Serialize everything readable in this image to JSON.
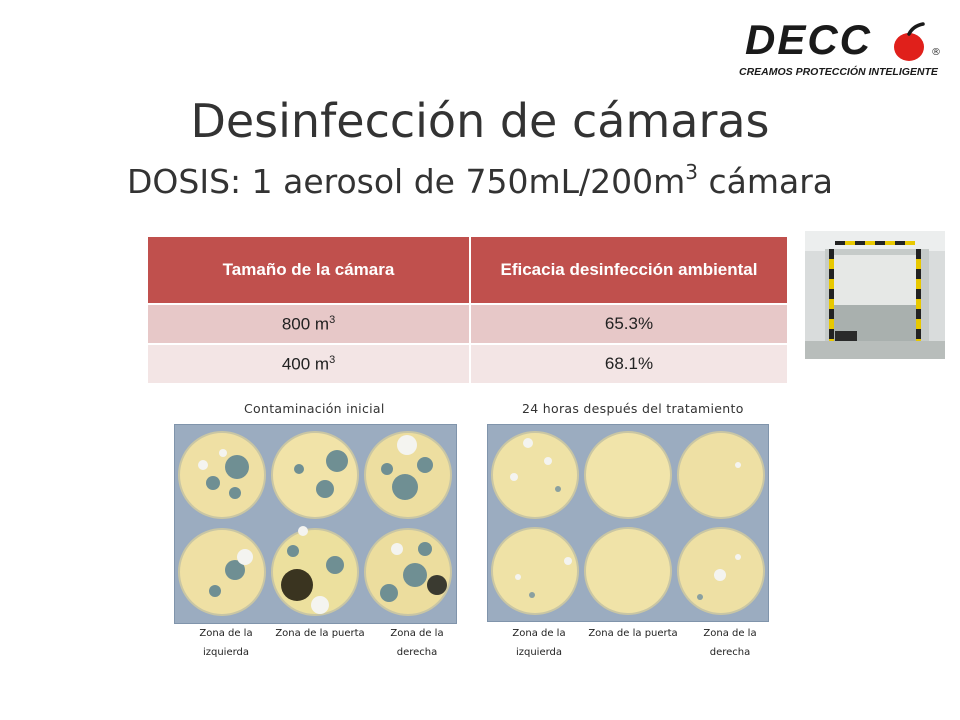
{
  "logo": {
    "brand": "DECC",
    "registered": "®",
    "tagline": "CREAMOS PROTECCIÓN INTELIGENTE"
  },
  "title": "Desinfección de cámaras",
  "subtitle": {
    "prefix": "DOSIS: 1 aerosol de 750mL/200m",
    "sup": "3",
    "suffix": " cámara"
  },
  "table": {
    "headers": [
      "Tamaño de la cámara",
      "Eficacia desinfección ambiental"
    ],
    "rows": [
      {
        "size": "800 m",
        "size_sup": "3",
        "efficacy": "65.3%"
      },
      {
        "size": "400 m",
        "size_sup": "3",
        "efficacy": "68.1%"
      }
    ]
  },
  "panels": {
    "left": {
      "title": "Contaminación inicial",
      "zones": [
        "Zona de la izquierda",
        "Zona de la puerta",
        "Zona de la derecha"
      ]
    },
    "right": {
      "title": "24 horas después del tratamiento",
      "zones": [
        "Zona de la izquierda",
        "Zona de la puerta",
        "Zona de la derecha"
      ]
    }
  },
  "colors": {
    "header": "#c0504d",
    "row_odd": "#e7c8c8",
    "row_even": "#f3e5e5",
    "accent": "#e0201b"
  }
}
